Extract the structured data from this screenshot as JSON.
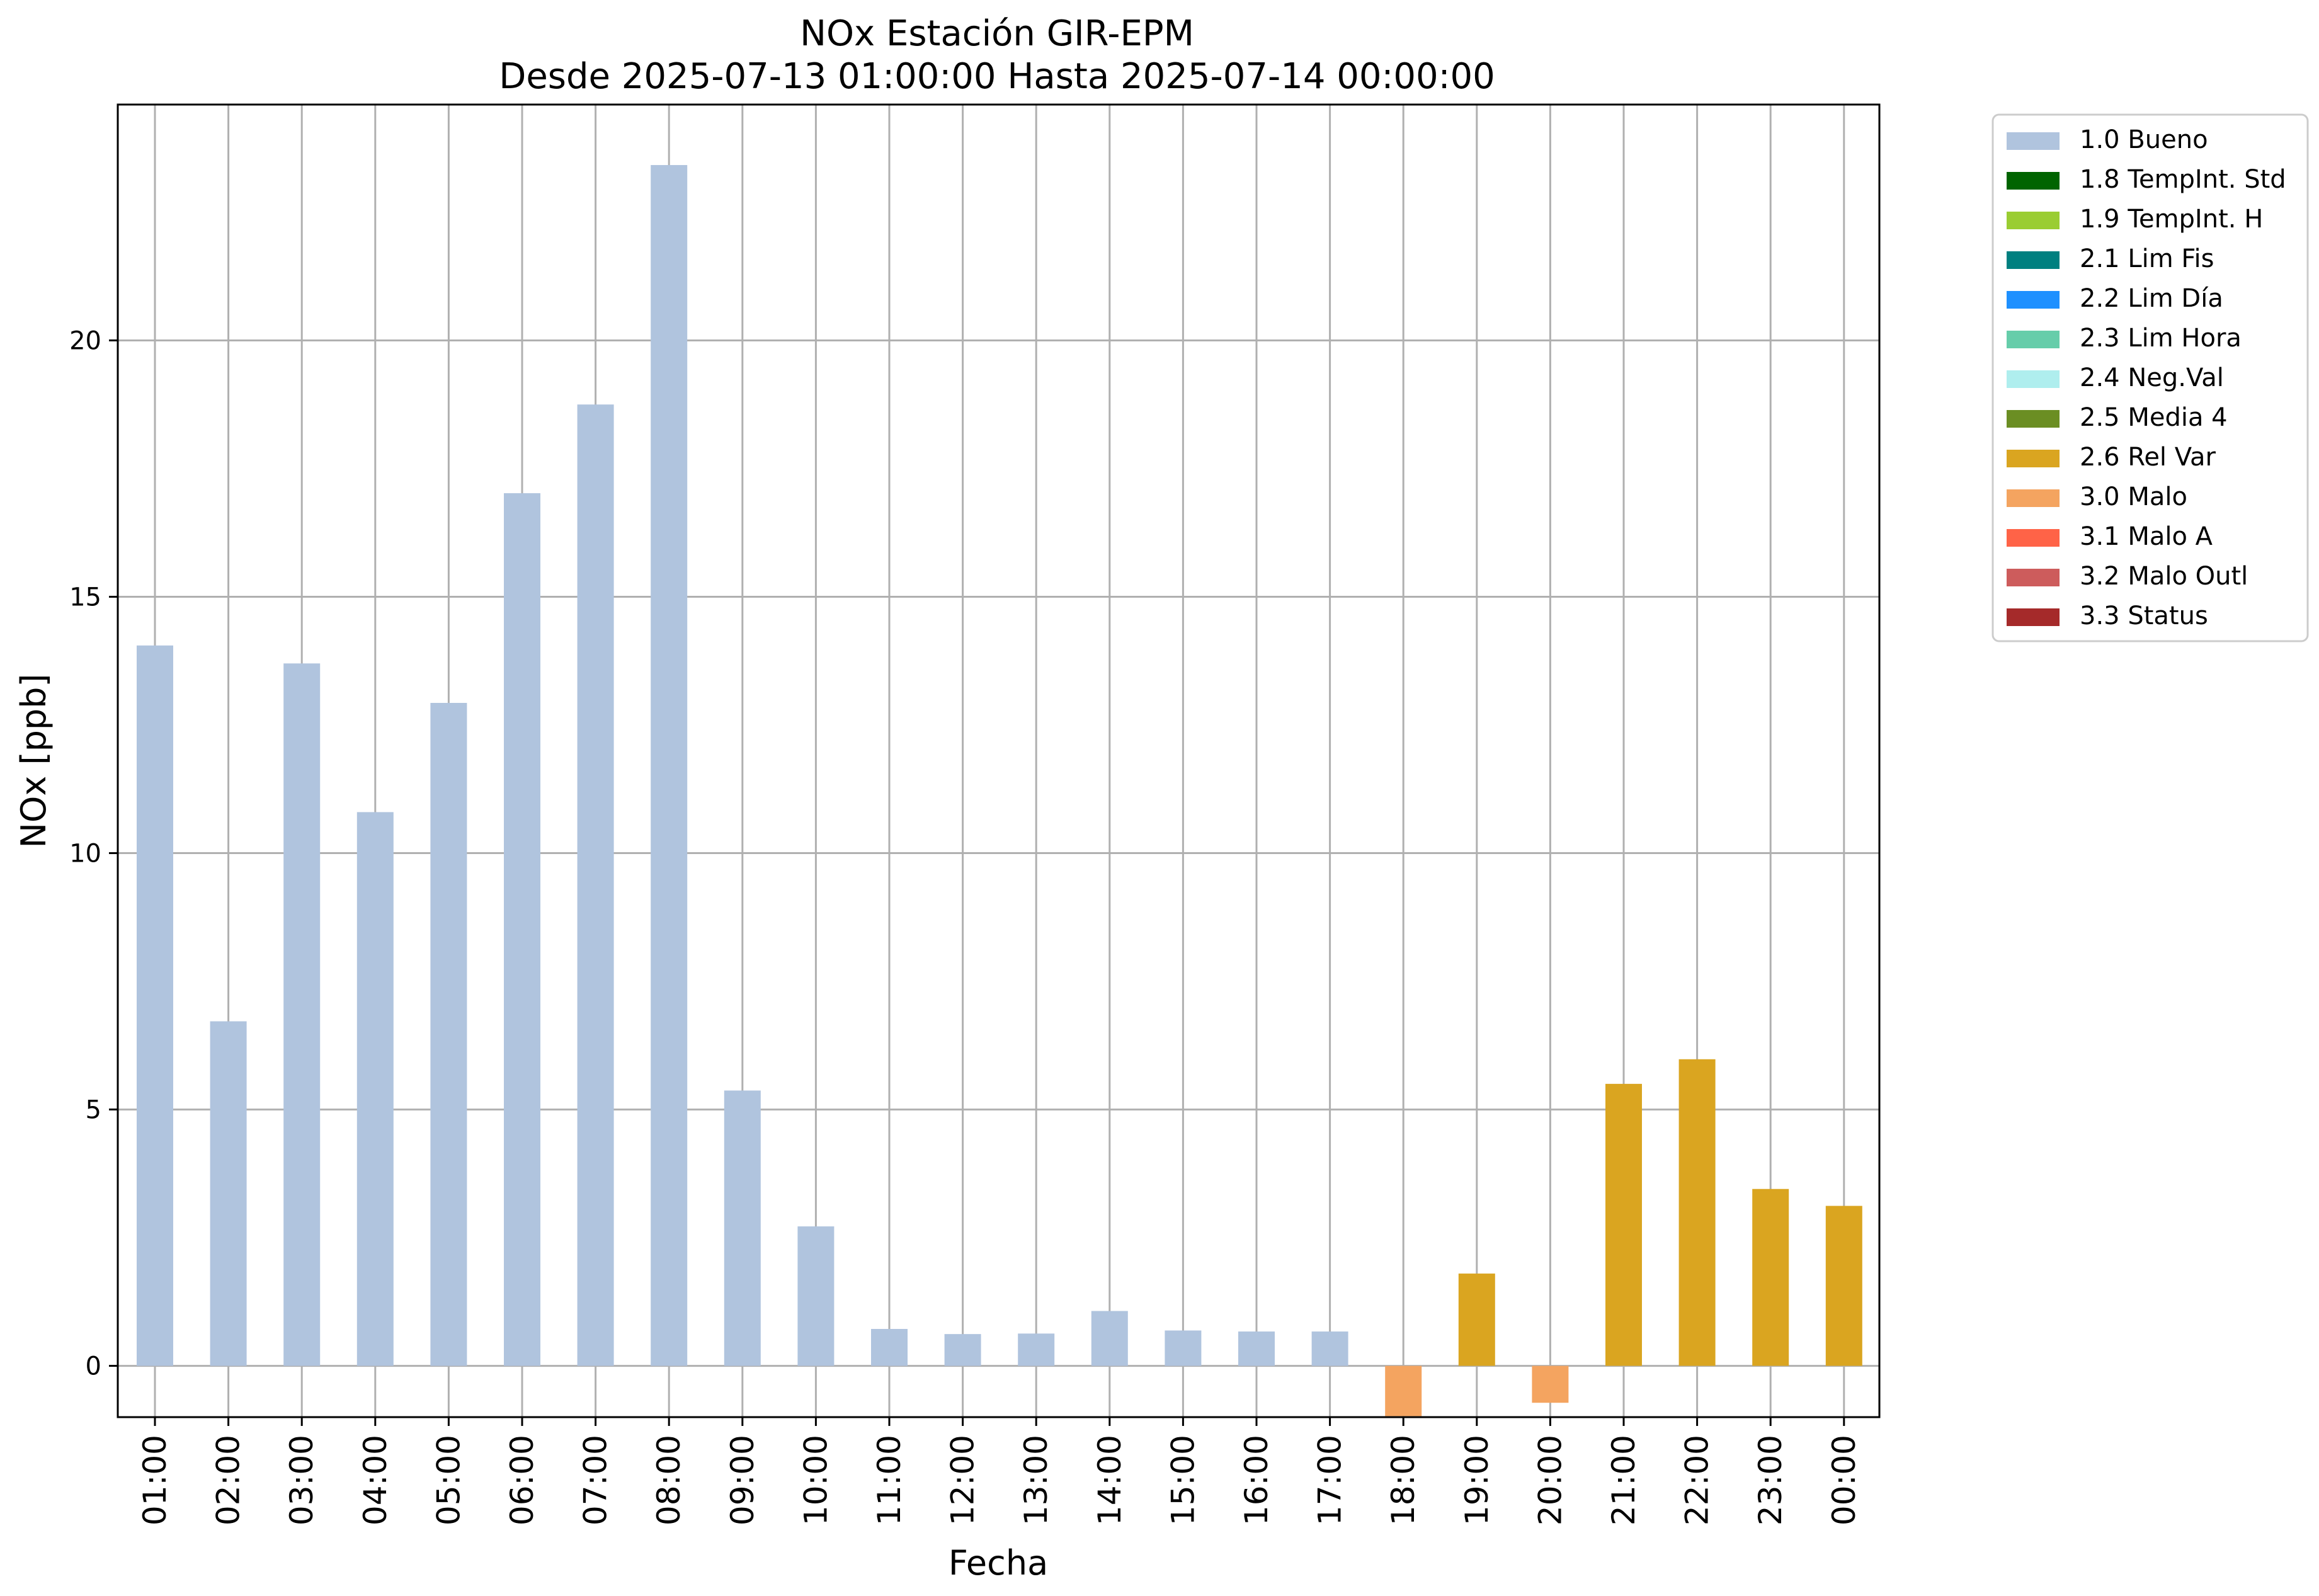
{
  "chart_data": {
    "type": "bar",
    "title": "NOx Estación GIR-EPM",
    "subtitle": "Desde 2025-07-13 01:00:00 Hasta 2025-07-14 00:00:00",
    "xlabel": "Fecha",
    "ylabel": "NOx [ppb]",
    "ylim": [
      -1.0,
      24.6
    ],
    "yticks": [
      0,
      5,
      10,
      15,
      20
    ],
    "grid": true,
    "legend_position": "outside-top-right",
    "categories": [
      "01:00",
      "02:00",
      "03:00",
      "04:00",
      "05:00",
      "06:00",
      "07:00",
      "08:00",
      "09:00",
      "10:00",
      "11:00",
      "12:00",
      "13:00",
      "14:00",
      "15:00",
      "16:00",
      "17:00",
      "18:00",
      "19:00",
      "20:00",
      "21:00",
      "22:00",
      "23:00",
      "00:00"
    ],
    "values": [
      14.05,
      6.72,
      13.7,
      10.8,
      12.93,
      17.02,
      18.75,
      23.42,
      5.37,
      2.72,
      0.72,
      0.62,
      0.63,
      1.07,
      0.69,
      0.67,
      0.67,
      -0.98,
      1.8,
      -0.72,
      5.5,
      5.98,
      3.45,
      3.12
    ],
    "flags": [
      "1.0 Bueno",
      "1.0 Bueno",
      "1.0 Bueno",
      "1.0 Bueno",
      "1.0 Bueno",
      "1.0 Bueno",
      "1.0 Bueno",
      "1.0 Bueno",
      "1.0 Bueno",
      "1.0 Bueno",
      "1.0 Bueno",
      "1.0 Bueno",
      "1.0 Bueno",
      "1.0 Bueno",
      "1.0 Bueno",
      "1.0 Bueno",
      "1.0 Bueno",
      "3.0 Malo",
      "2.6 Rel Var",
      "3.0 Malo",
      "2.6 Rel Var",
      "2.6 Rel Var",
      "2.6 Rel Var",
      "2.6 Rel Var"
    ],
    "legend": [
      {
        "label": "1.0 Bueno",
        "color": "#b0c4de"
      },
      {
        "label": "1.8 TempInt. Std",
        "color": "#006400"
      },
      {
        "label": "1.9 TempInt. H",
        "color": "#9acd32"
      },
      {
        "label": "2.1 Lim Fis",
        "color": "#008080"
      },
      {
        "label": "2.2 Lim Día",
        "color": "#1e90ff"
      },
      {
        "label": "2.3 Lim Hora",
        "color": "#66cdaa"
      },
      {
        "label": "2.4 Neg.Val",
        "color": "#afeeee"
      },
      {
        "label": "2.5 Media 4",
        "color": "#6b8e23"
      },
      {
        "label": "2.6 Rel Var",
        "color": "#daa520"
      },
      {
        "label": "3.0 Malo",
        "color": "#f4a460"
      },
      {
        "label": "3.1 Malo A",
        "color": "#ff6347"
      },
      {
        "label": "3.2 Malo Outl",
        "color": "#cd5c5c"
      },
      {
        "label": "3.3 Status",
        "color": "#a52a2a"
      }
    ]
  }
}
